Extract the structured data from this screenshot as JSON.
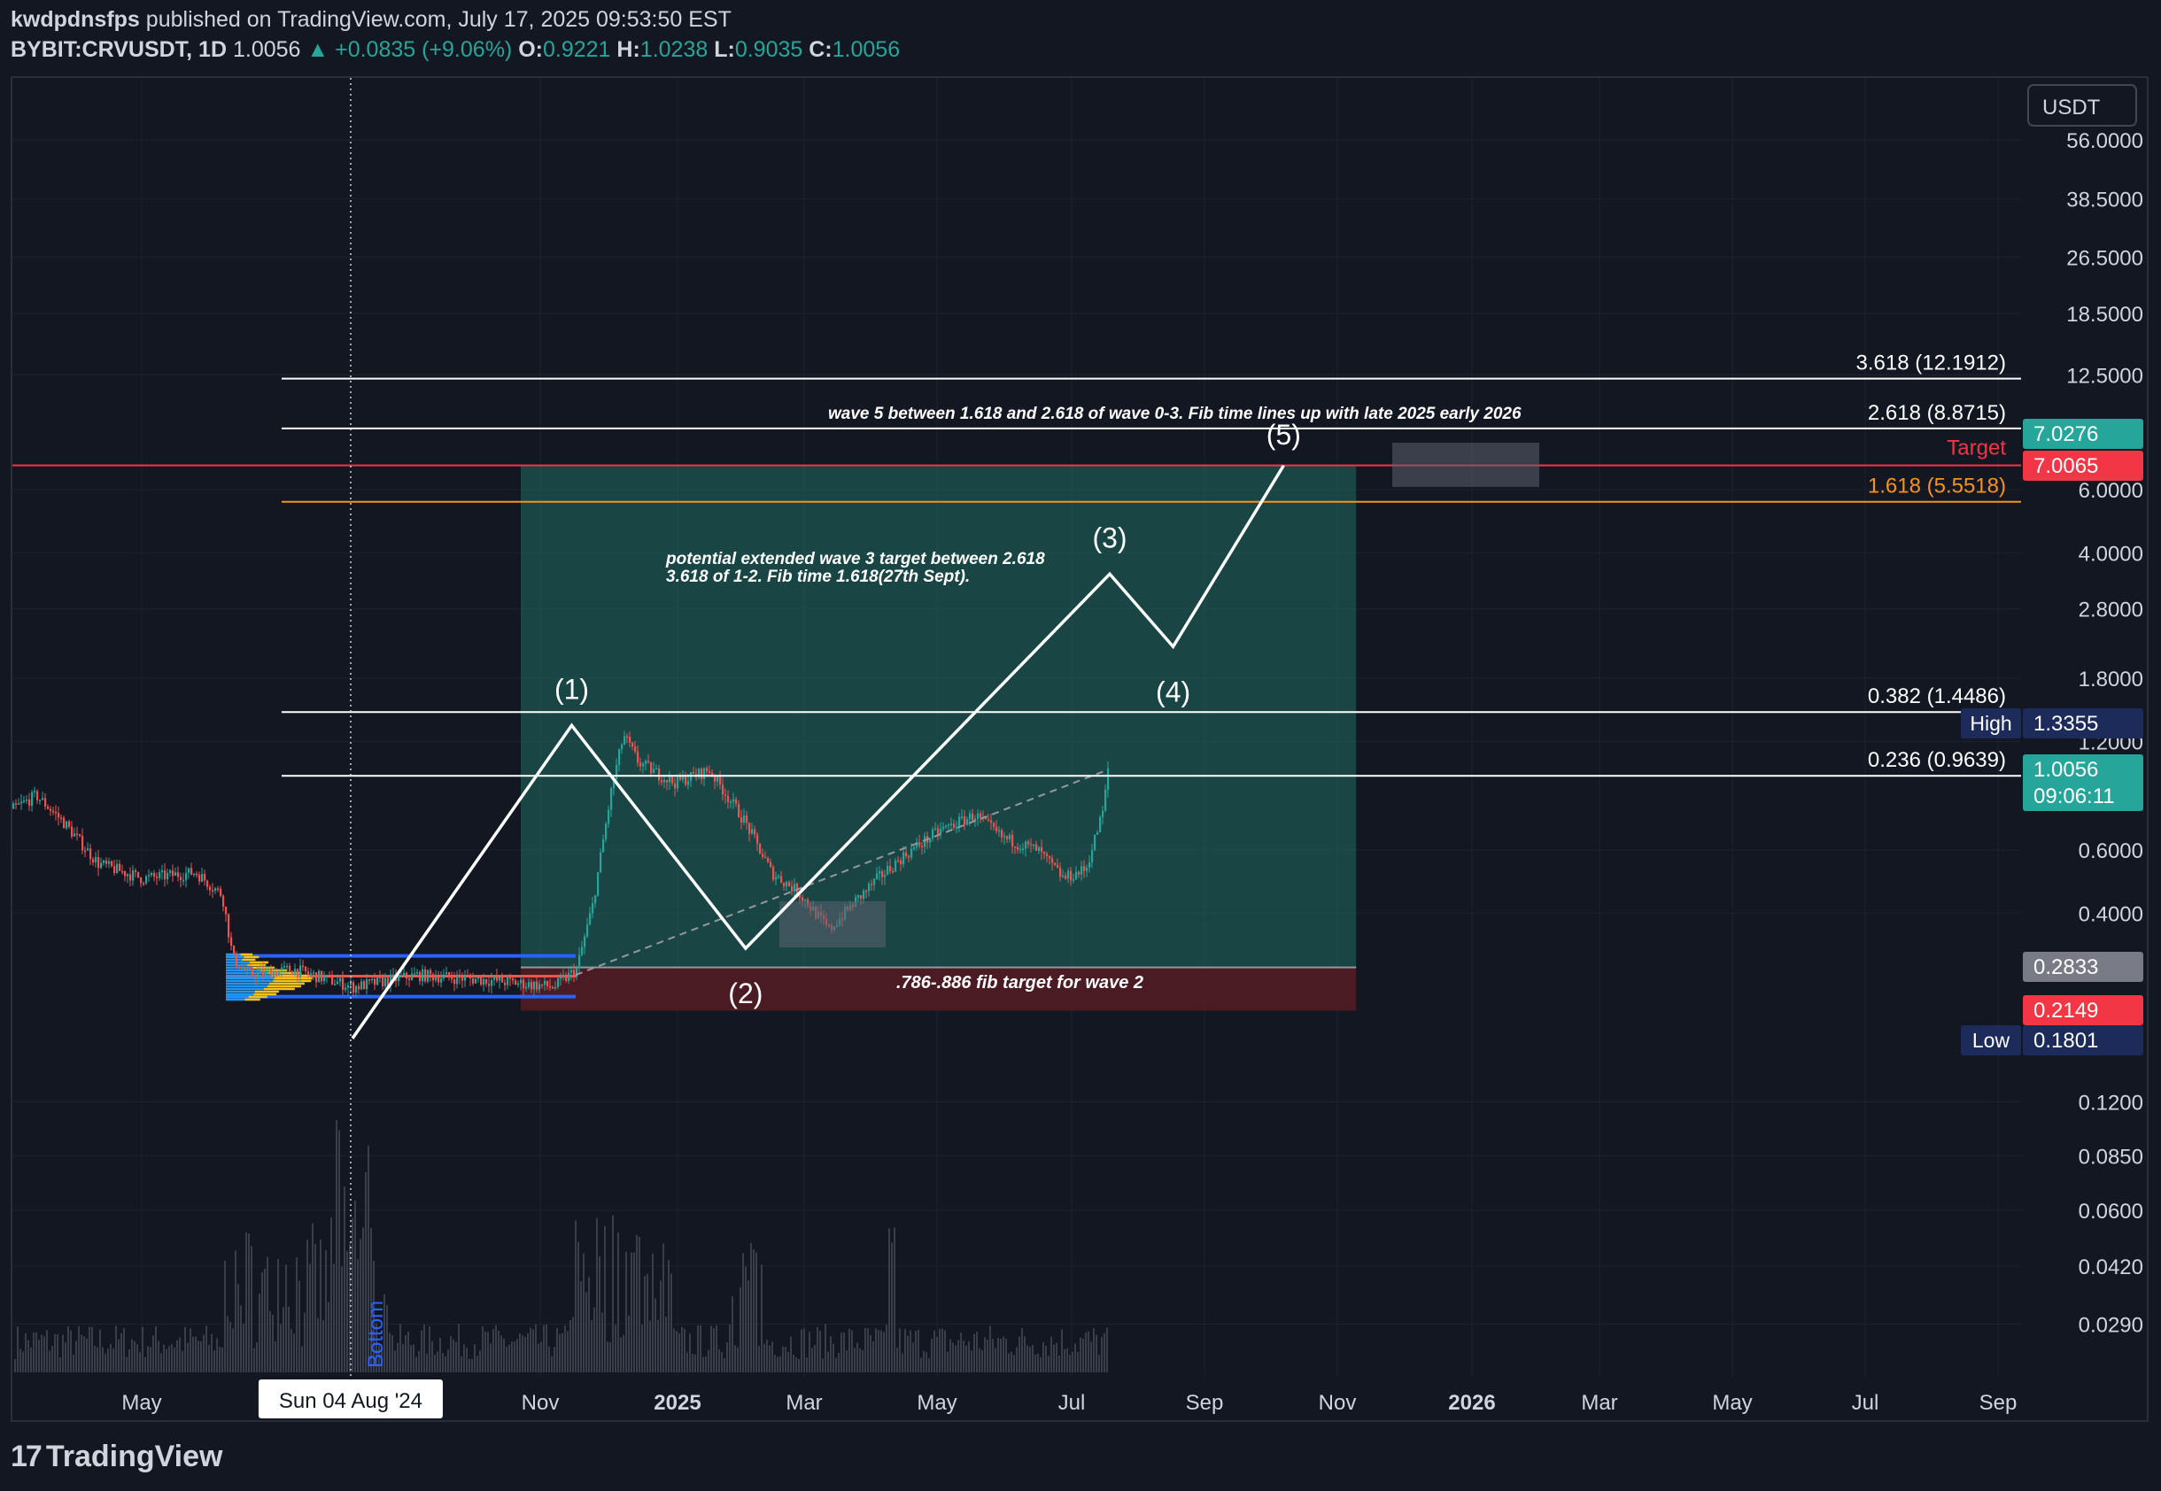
{
  "header": {
    "author": "kwdpdnsfps",
    "published_text": "published on TradingView.com, July 17, 2025 09:53:50 EST",
    "symbol": "BYBIT:CRVUSDT, 1D",
    "last": "1.0056",
    "change": "▲ +0.0835 (+9.06%)",
    "o_label": "O:",
    "o": "0.9221",
    "h_label": "H:",
    "h": "1.0238",
    "l_label": "L:",
    "l": "0.9035",
    "c_label": "C:",
    "c": "1.0056"
  },
  "currency_button": "USDT",
  "footer": {
    "logo_text": "TradingView",
    "logo_mark": "17"
  },
  "colors": {
    "background": "#131722",
    "grid": "#1e222d",
    "up": "#26a69a",
    "down": "#ef5350",
    "fib_white": "#ffffff",
    "fib_orange": "#f7931a",
    "target_red": "#f23645",
    "position_green": "#1f6e63",
    "position_red": "#5a1d26"
  },
  "chart_data": {
    "type": "candlestick",
    "y_scale": "log",
    "y_unit": "USDT",
    "price_axis_ticks": [
      "56.0000",
      "38.5000",
      "26.5000",
      "18.5000",
      "12.5000",
      "6.0000",
      "4.0000",
      "2.8000",
      "1.8000",
      "1.2000",
      "0.6000",
      "0.4000",
      "0.1200",
      "0.0850",
      "0.0600",
      "0.0420",
      "0.0290"
    ],
    "time_axis_ticks": [
      "May",
      "Nov",
      "2025",
      "Mar",
      "May",
      "Jul",
      "Sep",
      "Nov",
      "2026",
      "Mar",
      "May",
      "Jul",
      "Sep"
    ],
    "crosshair_date": "Sun 04 Aug '24",
    "fib_levels": [
      {
        "label": "3.618 (12.1912)",
        "price": 12.1912
      },
      {
        "label": "2.618 (8.8715)",
        "price": 8.8715
      },
      {
        "label": "1.618 (5.5518)",
        "price": 5.5518
      },
      {
        "label": "0.382 (1.4486)",
        "price": 1.4486
      },
      {
        "label": "0.236 (0.9639)",
        "price": 0.9639
      }
    ],
    "target_line": {
      "label": "Target",
      "price": 7.0065
    },
    "price_labels": [
      {
        "text": "7.0276",
        "price": 7.0276
      },
      {
        "text": "7.0065",
        "price": 7.0065
      },
      {
        "text": "1.3355",
        "tag": "High",
        "price": 1.3355
      },
      {
        "text": "1.0056",
        "countdown": "09:06:11",
        "price": 1.0056
      },
      {
        "text": "0.2833",
        "price": 0.2833
      },
      {
        "text": "0.2149",
        "price": 0.2149
      },
      {
        "text": "0.1801",
        "tag": "Low",
        "price": 0.1801
      }
    ],
    "wave_labels": [
      {
        "text": "(1)",
        "date": "2024-12-04",
        "price": 1.33
      },
      {
        "text": "(2)",
        "date": "2025-03-10",
        "price": 0.32
      },
      {
        "text": "(3)",
        "date": "2025-09-27",
        "price": 3.5
      },
      {
        "text": "(4)",
        "date": "2025-11-01",
        "price": 2.2
      },
      {
        "text": "(5)",
        "date": "2026-01-01",
        "price": 7.0
      }
    ],
    "wave_path": [
      {
        "date": "2024-08-05",
        "price": 0.18
      },
      {
        "date": "2024-12-04",
        "price": 1.33
      },
      {
        "date": "2025-03-10",
        "price": 0.32
      },
      {
        "date": "2025-09-27",
        "price": 3.5
      },
      {
        "date": "2025-11-01",
        "price": 2.2
      },
      {
        "date": "2026-01-01",
        "price": 7.0
      }
    ],
    "annotations": {
      "wave5": "wave 5 between 1.618 and 2.618 of wave 0-3. Fib time lines up with late 2025 early 2026",
      "wave3_line1": "potential extended wave 3 target between 2.618",
      "wave3_line2": "3.618 of 1-2. Fib time 1.618(27th Sept).",
      "wave2": ".786-.886 fib target for wave 2",
      "bottom": "Bottom"
    },
    "long_position": {
      "entry": 0.2833,
      "stop": 0.2149,
      "target": 7.0276,
      "start": "2024-11-01",
      "end": "2026-02-10"
    },
    "volume_profile_range": {
      "high": 0.305,
      "low": 0.235
    },
    "last_price": 1.0056
  }
}
